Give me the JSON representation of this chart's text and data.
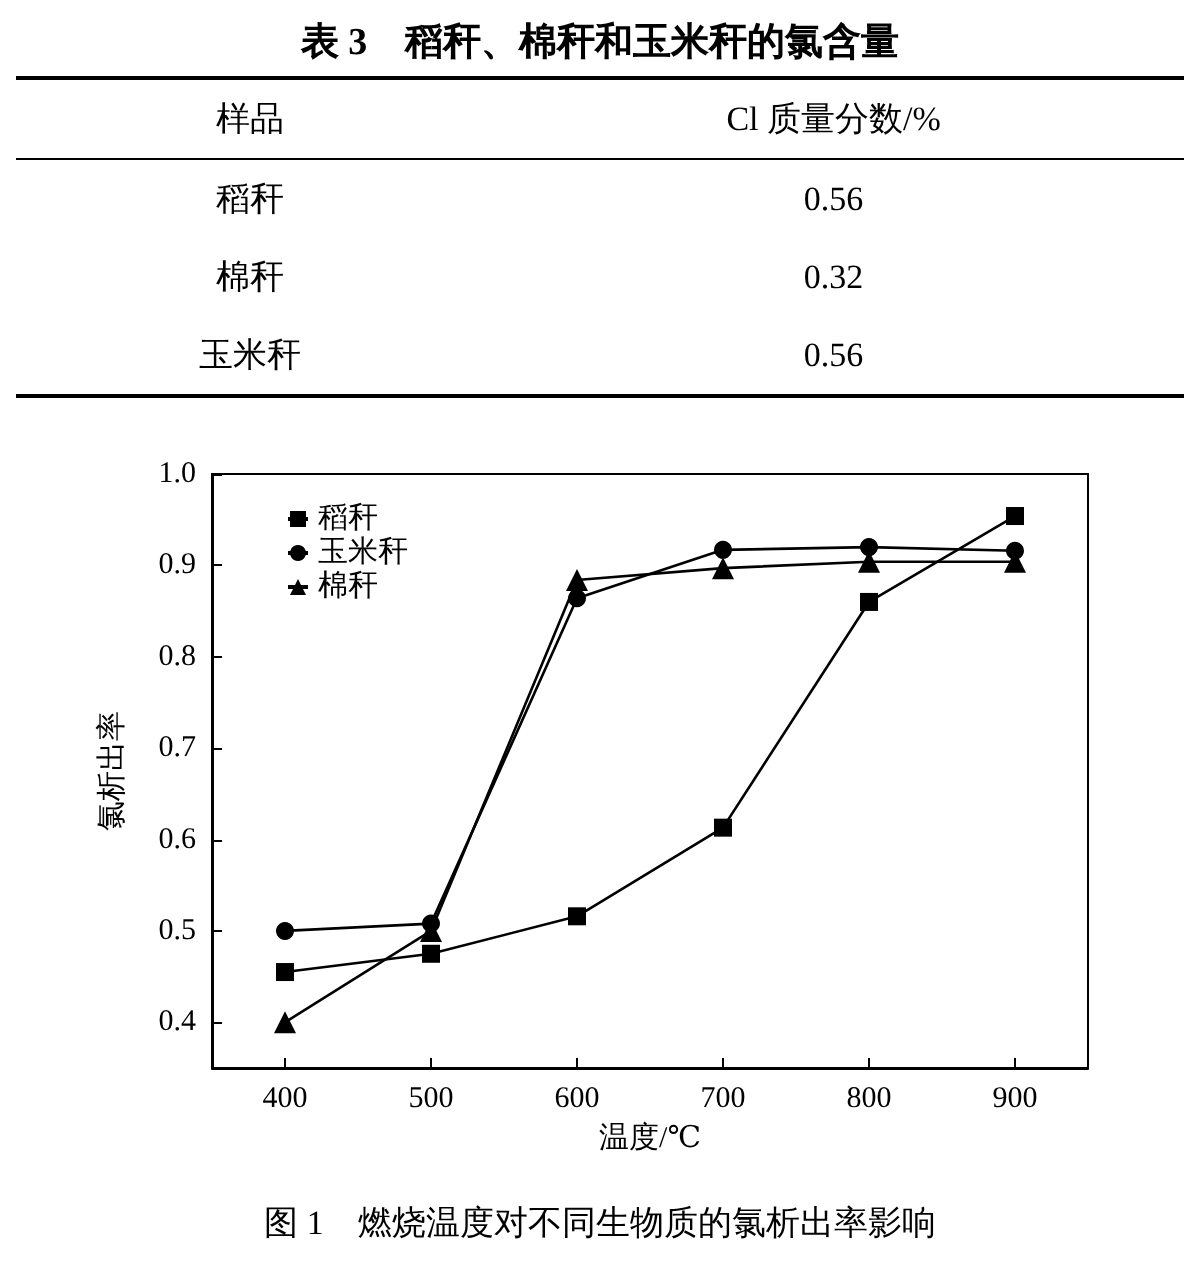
{
  "chart_data": [
    {
      "type": "other",
      "title": "表 3　稻秆、棉秆和玉米秆的氯含量",
      "annotations": [
        "样品",
        "Cl 质量分数/%",
        "稻秆",
        "0.56",
        "棉秆",
        "0.32",
        "玉米秆",
        "0.56"
      ]
    },
    {
      "type": "line",
      "title": "图 1　燃烧温度对不同生物质的氯析出率影响",
      "xlabel": "温度/℃",
      "ylabel": "氯析出率",
      "x": [
        400,
        500,
        600,
        700,
        800,
        900
      ],
      "series": [
        {
          "name": "稻秆",
          "color": "#000000",
          "marker": "square",
          "values": [
            0.455,
            0.475,
            0.516,
            0.613,
            0.86,
            0.954
          ]
        },
        {
          "name": "玉米秆",
          "color": "#000000",
          "marker": "circle",
          "values": [
            0.5,
            0.508,
            0.864,
            0.917,
            0.92,
            0.916
          ]
        },
        {
          "name": "棉秆",
          "color": "#000000",
          "marker": "triangle",
          "values": [
            0.4,
            0.5,
            0.884,
            0.897,
            0.904,
            0.904
          ]
        }
      ],
      "xlim": [
        350,
        950
      ],
      "xticks": [
        400,
        500,
        600,
        700,
        800,
        900
      ],
      "ylim": [
        0.35,
        1.0
      ],
      "yticks": [
        0.4,
        0.5,
        0.6,
        0.7,
        0.8,
        0.9,
        {
          "value": 1.0,
          "label": "1.0"
        }
      ],
      "legend": "top left",
      "grid": false,
      "line_style": "solid"
    }
  ]
}
